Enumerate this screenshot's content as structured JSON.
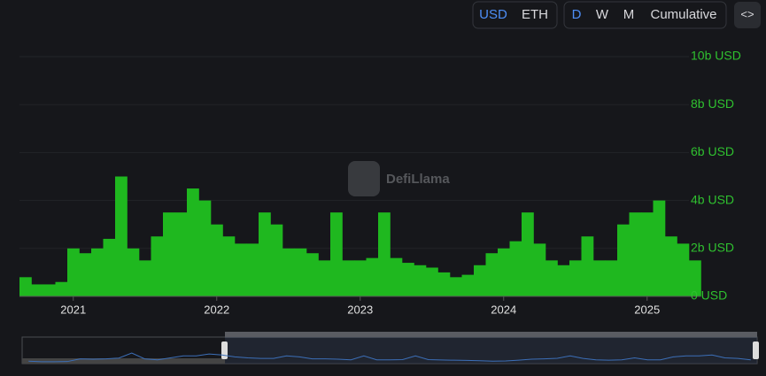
{
  "controls": {
    "currency": [
      "USD",
      "ETH"
    ],
    "period": [
      "D",
      "W",
      "M",
      "Cumulative"
    ],
    "embed": "<>"
  },
  "watermark": "DefiLlama",
  "chart_data": {
    "type": "bar",
    "color": "#1fb81f",
    "categories": [
      null,
      null,
      null,
      null,
      "2021",
      null,
      null,
      null,
      null,
      null,
      null,
      null,
      null,
      null,
      null,
      null,
      "2022",
      null,
      null,
      null,
      null,
      null,
      null,
      null,
      null,
      null,
      null,
      null,
      "2023",
      null,
      null,
      null,
      null,
      null,
      null,
      null,
      null,
      null,
      null,
      null,
      "2024",
      null,
      null,
      null,
      null,
      null,
      null,
      null,
      null,
      null,
      null,
      null,
      "2025",
      null,
      null,
      null,
      null
    ],
    "values": [
      0.8,
      0.5,
      0.5,
      0.6,
      2.0,
      1.8,
      2.0,
      2.4,
      5.0,
      2.0,
      1.5,
      2.5,
      3.5,
      3.5,
      4.5,
      4.0,
      3.0,
      2.5,
      2.2,
      2.2,
      3.5,
      3.0,
      2.0,
      2.0,
      1.8,
      1.5,
      3.5,
      1.5,
      1.5,
      1.6,
      3.5,
      1.6,
      1.4,
      1.3,
      1.2,
      1.0,
      0.8,
      0.9,
      1.3,
      1.8,
      2.0,
      2.3,
      3.5,
      2.2,
      1.5,
      1.3,
      1.5,
      2.5,
      1.5,
      1.5,
      3.0,
      3.5,
      3.5,
      4.0,
      2.5,
      2.2,
      1.5
    ],
    "ylim": [
      0,
      10
    ],
    "yticks": [
      {
        "value": 0,
        "label": "0 USD"
      },
      {
        "value": 2,
        "label": "2b USD"
      },
      {
        "value": 4,
        "label": "4b USD"
      },
      {
        "value": 6,
        "label": "6b USD"
      },
      {
        "value": 8,
        "label": "8b USD"
      },
      {
        "value": 10,
        "label": "10b USD"
      }
    ],
    "grid": true
  }
}
